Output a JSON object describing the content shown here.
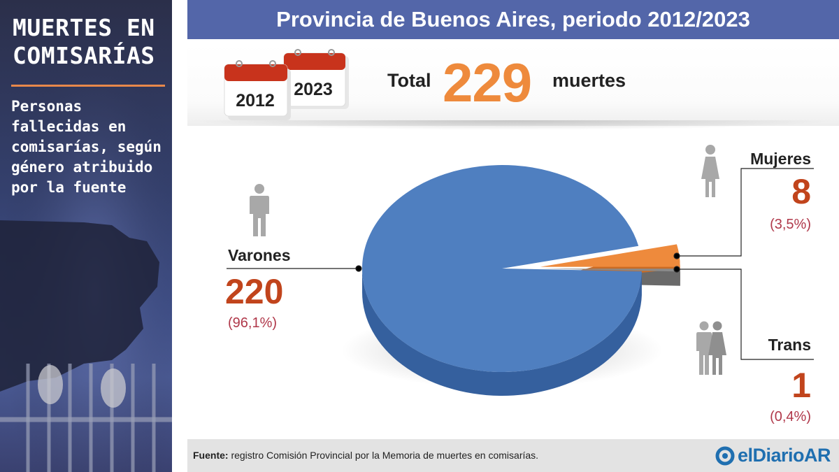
{
  "sidebar": {
    "title": "MUERTES EN COMISARÍAS",
    "subtitle": "Personas fallecidas en comisarías, según género atribuido por la fuente"
  },
  "header": {
    "title": "Provincia de Buenos Aires, periodo 2012/2023"
  },
  "totals": {
    "year_start": "2012",
    "year_end": "2023",
    "label": "Total",
    "value": "229",
    "unit": "muertes"
  },
  "categories": {
    "varones": {
      "label": "Varones",
      "value": "220",
      "pct": "(96,1%)"
    },
    "mujeres": {
      "label": "Mujeres",
      "value": "8",
      "pct": "(3,5%)"
    },
    "trans": {
      "label": "Trans",
      "value": "1",
      "pct": "(0,4%)"
    }
  },
  "footer": {
    "source_label": "Fuente:",
    "source_text": " registro Comisión Provincial por la  Memoria de muertes en comisarías.",
    "brand": "elDiarioAR"
  },
  "colors": {
    "varones": "#4f7fc0",
    "varones_side": "#35609e",
    "mujeres": "#ee8a3c",
    "mujeres_side": "#c96b24",
    "trans": "#8a8a8a",
    "trans_side": "#6a6a6a",
    "header": "#5366a9",
    "accent": "#ee8a3c",
    "value": "#c1441c"
  },
  "icons": {
    "calendar": "calendar-icon",
    "varones": "man-icon",
    "mujeres": "woman-icon",
    "trans": "couple-icon",
    "brand": "brand-logo-icon"
  },
  "chart_data": {
    "type": "pie",
    "title": "Provincia de Buenos Aires, periodo 2012/2023",
    "total": 229,
    "unit": "muertes",
    "categories": [
      "Varones",
      "Mujeres",
      "Trans"
    ],
    "values": [
      220,
      8,
      1
    ],
    "percent": [
      96.1,
      3.5,
      0.4
    ],
    "colors": [
      "#4f7fc0",
      "#ee8a3c",
      "#8a8a8a"
    ],
    "style": "3d-exploded"
  }
}
